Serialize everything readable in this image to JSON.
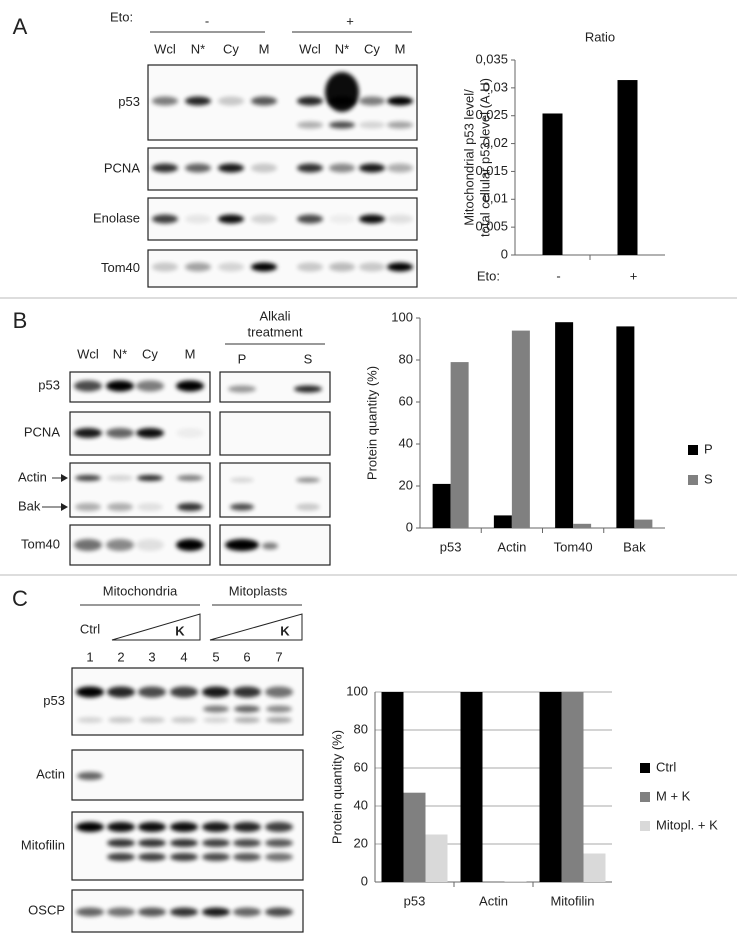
{
  "panels": {
    "a": {
      "label": "A",
      "eto": "Eto:",
      "minus": "-",
      "plus": "+",
      "lanes": [
        "Wcl",
        "N*",
        "Cy",
        "M",
        "Wcl",
        "N*",
        "Cy",
        "M"
      ],
      "rows": [
        "p53",
        "PCNA",
        "Enolase",
        "Tom40"
      ]
    },
    "b": {
      "label": "B",
      "lanes": [
        "Wcl",
        "N*",
        "Cy",
        "M"
      ],
      "alkali": [
        "Alkali",
        "treatment"
      ],
      "fractions": [
        "P",
        "S"
      ],
      "rows": [
        "p53",
        "PCNA",
        "Actin",
        "Bak",
        "Tom40"
      ]
    },
    "c": {
      "label": "C",
      "groups": [
        "Mitochondria",
        "Mitoplasts"
      ],
      "ctrl": "Ctrl",
      "k": [
        "K",
        "K"
      ],
      "lanes": [
        "1",
        "2",
        "3",
        "4",
        "5",
        "6",
        "7"
      ],
      "rows": [
        "p53",
        "Actin",
        "Mitofilin",
        "OSCP"
      ]
    }
  },
  "chart_data": [
    {
      "type": "bar",
      "title": "Ratio",
      "y_label": [
        "Mitochondrial p53 level/",
        "total cellular p53 level (A.U)"
      ],
      "x_label": "Eto:",
      "categories": [
        "-",
        "+"
      ],
      "values": [
        0.0254,
        0.0314
      ],
      "color": "#000000",
      "ylim": [
        0,
        0.035
      ],
      "yticks": [
        0,
        {
          "value": 0.005,
          "label": "0,005"
        },
        {
          "value": 0.01,
          "label": "0,01"
        },
        {
          "value": 0.015,
          "label": "0,015"
        },
        {
          "value": 0.02,
          "label": "0,02"
        },
        {
          "value": 0.025,
          "label": "0,025"
        },
        {
          "value": 0.03,
          "label": "0,03"
        },
        {
          "value": 0.035,
          "label": "0,035"
        }
      ],
      "grid": false
    },
    {
      "type": "bar",
      "y_label": "Protein quantity (%)",
      "categories": [
        "p53",
        "Actin",
        "Tom40",
        "Bak"
      ],
      "series": [
        {
          "name": "P",
          "color": "#000000",
          "values": [
            21,
            6,
            98,
            96
          ]
        },
        {
          "name": "S",
          "color": "#808080",
          "values": [
            79,
            94,
            2,
            4
          ]
        }
      ],
      "ylim": [
        0,
        100
      ],
      "yticks": [
        0,
        20,
        40,
        60,
        80,
        100
      ],
      "grid": false,
      "legend": "right"
    },
    {
      "type": "bar",
      "y_label": "Protein quantity (%)",
      "categories": [
        "p53",
        "Actin",
        "Mitofilin"
      ],
      "series": [
        {
          "name": "Ctrl",
          "color": "#000000",
          "values": [
            100,
            100,
            100
          ]
        },
        {
          "name": "M + K",
          "color": "#808080",
          "values": [
            47,
            0,
            100
          ]
        },
        {
          "name": "Mitopl. + K",
          "color": "#d9d9d9",
          "values": [
            25,
            0.5,
            15
          ]
        }
      ],
      "ylim": [
        0,
        100
      ],
      "yticks": [
        0,
        20,
        40,
        60,
        80,
        100
      ],
      "grid": true,
      "legend": "right"
    }
  ]
}
